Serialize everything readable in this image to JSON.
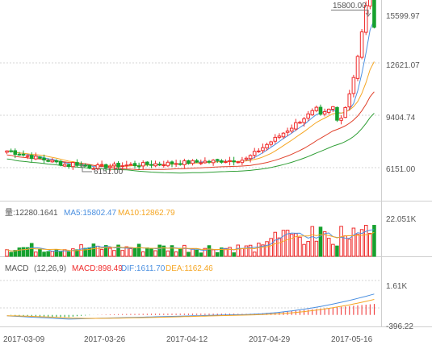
{
  "chart_data": [
    {
      "panel": "price",
      "type": "candlestick",
      "x": [
        "2017-03-09",
        "2017-03-26",
        "2017-04-12",
        "2017-04-29",
        "2017-05-16"
      ],
      "y_ticks": [
        "15599.97",
        "12621.07",
        "9404.74",
        "6151.00"
      ],
      "ylim": [
        5000,
        16800
      ],
      "annotations": [
        {
          "label": "15800.00",
          "value": 15800
        },
        {
          "label": "6151.00",
          "value": 6151
        }
      ],
      "colors": {
        "up": "#ef2b2b",
        "down": "#16a12e",
        "ma5": "#4a8fe0",
        "ma10": "#f5a623",
        "ma20": "#e0402a",
        "ma30": "#2f9e35"
      }
    },
    {
      "panel": "volume",
      "type": "bar",
      "legend": {
        "volume": "量:12280.1641",
        "ma5": "MA5:15802.47",
        "ma10": "MA10:12862.79"
      },
      "y_ticks": [
        "22.051K"
      ],
      "ylim": [
        0,
        24000
      ]
    },
    {
      "panel": "macd",
      "type": "line",
      "legend": {
        "name": "MACD",
        "params": "(12,26,9)",
        "macd": "MACD:898.49",
        "dif": "DIF:1611.70",
        "dea": "DEA:1162.46"
      },
      "y_ticks": [
        "1.61K",
        "-396.22"
      ],
      "ylim": [
        -500,
        1800
      ]
    }
  ]
}
